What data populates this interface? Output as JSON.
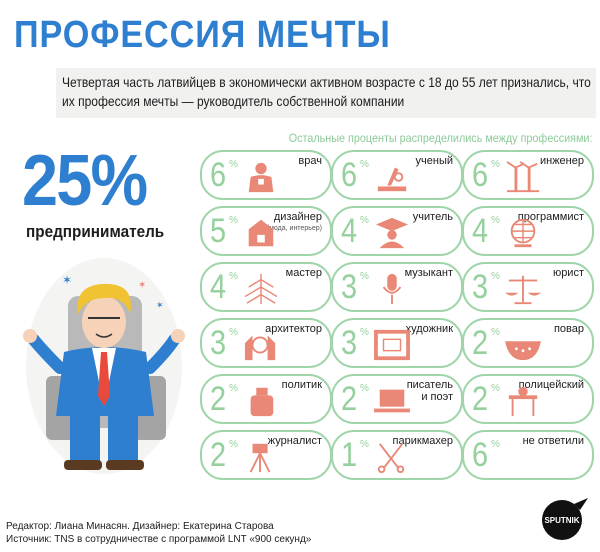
{
  "title": "ПРОФЕССИЯ МЕЧТЫ",
  "intro": "Четвертая часть латвийцев в экономически активном возрасте с 18 до 55 лет признались, что их профессия мечты — руководитель собственной компании",
  "subhead": "Остальные проценты распределились между профессиями:",
  "main_stat": {
    "value": "25%",
    "label": "предприниматель"
  },
  "professions": [
    {
      "pct": "6",
      "label": "врач",
      "sub": "",
      "icon": "doctor-icon"
    },
    {
      "pct": "6",
      "label": "ученый",
      "sub": "",
      "icon": "microscope-icon"
    },
    {
      "pct": "6",
      "label": "инженер",
      "sub": "",
      "icon": "wind-turbine-icon"
    },
    {
      "pct": "5",
      "label": "дизайнер",
      "sub": "(мода, интерьер)",
      "icon": "furniture-icon"
    },
    {
      "pct": "4",
      "label": "учитель",
      "sub": "",
      "icon": "teacher-icon"
    },
    {
      "pct": "4",
      "label": "программист",
      "sub": "",
      "icon": "globe-computer-icon"
    },
    {
      "pct": "4",
      "label": "мастер",
      "sub": "",
      "icon": "tree-icon"
    },
    {
      "pct": "3",
      "label": "музыкант",
      "sub": "",
      "icon": "microphone-icon"
    },
    {
      "pct": "3",
      "label": "юрист",
      "sub": "",
      "icon": "scales-icon"
    },
    {
      "pct": "3",
      "label": "архитектор",
      "sub": "",
      "icon": "building-icon"
    },
    {
      "pct": "3",
      "label": "художник",
      "sub": "",
      "icon": "picture-frame-icon"
    },
    {
      "pct": "2",
      "label": "повар",
      "sub": "",
      "icon": "colander-icon"
    },
    {
      "pct": "2",
      "label": "политик",
      "sub": "",
      "icon": "bottle-icon"
    },
    {
      "pct": "2",
      "label": "писатель",
      "sub": "и поэт",
      "icon": "laptop-icon"
    },
    {
      "pct": "2",
      "label": "полицейский",
      "sub": "",
      "icon": "police-icon"
    },
    {
      "pct": "2",
      "label": "журналист",
      "sub": "",
      "icon": "camera-tripod-icon"
    },
    {
      "pct": "1",
      "label": "парикмахер",
      "sub": "",
      "icon": "scissors-icon"
    },
    {
      "pct": "6",
      "label": "не ответили",
      "sub": "",
      "icon": ""
    }
  ],
  "percent_sign": "%",
  "footer": {
    "line1": "Редактор: Лиана Минасян. Дизайнер: Екатерина Старова",
    "line2": "Источник: TNS в сотрудничестве с программой LNT «900 секунд»"
  },
  "logo_text": "SPUTNIK",
  "colors": {
    "title_blue": "#2f7fd0",
    "card_green": "#9fd5a8",
    "icon_salmon": "#e98876",
    "text": "#1d1d1d"
  }
}
